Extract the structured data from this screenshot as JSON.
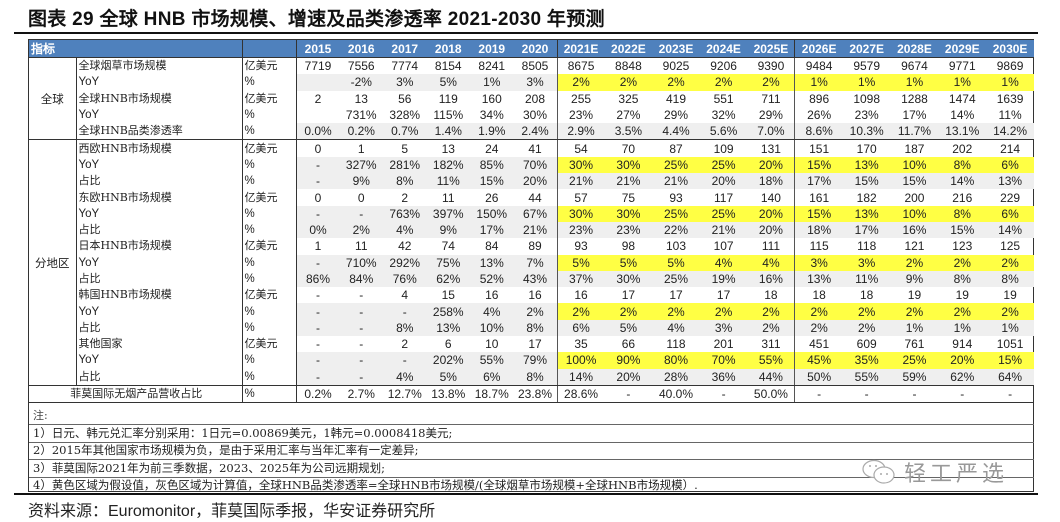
{
  "title": "图表 29 全球 HNB 市场规模、增速及品类渗透率 2021-2030 年预测",
  "table": {
    "header": {
      "indicator": "指标",
      "unit": "",
      "years": [
        "2015",
        "2016",
        "2017",
        "2018",
        "2019",
        "2020",
        "2021E",
        "2022E",
        "2023E",
        "2024E",
        "2025E",
        "2026E",
        "2027E",
        "2028E",
        "2029E",
        "2030E"
      ]
    },
    "groups": [
      {
        "name": "全球",
        "rows": [
          {
            "label": "全球烟草市场规模",
            "unit": "亿美元",
            "style": "white",
            "values": [
              "7719",
              "7556",
              "7774",
              "8154",
              "8241",
              "8505",
              "8675",
              "8848",
              "9025",
              "9206",
              "9390",
              "9484",
              "9579",
              "9674",
              "9771",
              "9869"
            ]
          },
          {
            "label": "YoY",
            "unit": "%",
            "style": "yellow",
            "values": [
              "",
              "-2%",
              "3%",
              "5%",
              "1%",
              "3%",
              "2%",
              "2%",
              "2%",
              "2%",
              "2%",
              "1%",
              "1%",
              "1%",
              "1%",
              "1%"
            ]
          },
          {
            "label": "全球HNB市场规模",
            "unit": "亿美元",
            "style": "white",
            "values": [
              "2",
              "13",
              "56",
              "119",
              "160",
              "208",
              "255",
              "325",
              "419",
              "551",
              "711",
              "896",
              "1098",
              "1288",
              "1474",
              "1639"
            ]
          },
          {
            "label": "YoY",
            "unit": "%",
            "style": "white",
            "values": [
              "",
              "731%",
              "328%",
              "115%",
              "34%",
              "30%",
              "23%",
              "27%",
              "29%",
              "32%",
              "29%",
              "26%",
              "23%",
              "17%",
              "14%",
              "11%"
            ]
          },
          {
            "label": "全球HNB品类渗透率",
            "unit": "%",
            "style": "gray",
            "values": [
              "0.0%",
              "0.2%",
              "0.7%",
              "1.4%",
              "1.9%",
              "2.4%",
              "2.9%",
              "3.5%",
              "4.4%",
              "5.6%",
              "7.0%",
              "8.6%",
              "10.3%",
              "11.7%",
              "13.1%",
              "14.2%"
            ]
          }
        ]
      },
      {
        "name": "分地区",
        "rows": [
          {
            "label": "西欧HNB市场规模",
            "unit": "亿美元",
            "style": "white",
            "values": [
              "0",
              "1",
              "5",
              "13",
              "24",
              "41",
              "54",
              "70",
              "87",
              "109",
              "131",
              "151",
              "170",
              "187",
              "202",
              "214"
            ]
          },
          {
            "label": "YoY",
            "unit": "%",
            "style": "yellow",
            "values": [
              "-",
              "327%",
              "281%",
              "182%",
              "85%",
              "70%",
              "30%",
              "30%",
              "25%",
              "25%",
              "20%",
              "15%",
              "13%",
              "10%",
              "8%",
              "6%"
            ]
          },
          {
            "label": "占比",
            "unit": "%",
            "style": "gray",
            "values": [
              "-",
              "9%",
              "8%",
              "11%",
              "15%",
              "20%",
              "21%",
              "21%",
              "21%",
              "20%",
              "18%",
              "17%",
              "15%",
              "15%",
              "14%",
              "13%"
            ]
          },
          {
            "label": "东欧HNB市场规模",
            "unit": "亿美元",
            "style": "white",
            "values": [
              "0",
              "0",
              "2",
              "11",
              "26",
              "44",
              "57",
              "75",
              "93",
              "117",
              "140",
              "161",
              "182",
              "200",
              "216",
              "229"
            ]
          },
          {
            "label": "YoY",
            "unit": "%",
            "style": "yellow",
            "values": [
              "-",
              "-",
              "763%",
              "397%",
              "150%",
              "67%",
              "30%",
              "30%",
              "25%",
              "25%",
              "20%",
              "15%",
              "13%",
              "10%",
              "8%",
              "6%"
            ]
          },
          {
            "label": "占比",
            "unit": "%",
            "style": "gray",
            "values": [
              "0%",
              "2%",
              "4%",
              "9%",
              "17%",
              "21%",
              "23%",
              "23%",
              "22%",
              "21%",
              "20%",
              "18%",
              "17%",
              "16%",
              "15%",
              "14%"
            ]
          },
          {
            "label": "日本HNB市场规模",
            "unit": "亿美元",
            "style": "white",
            "values": [
              "1",
              "11",
              "42",
              "74",
              "84",
              "89",
              "93",
              "98",
              "103",
              "107",
              "111",
              "115",
              "118",
              "121",
              "123",
              "125"
            ]
          },
          {
            "label": "YoY",
            "unit": "%",
            "style": "yellow",
            "values": [
              "-",
              "710%",
              "292%",
              "75%",
              "13%",
              "7%",
              "5%",
              "5%",
              "5%",
              "4%",
              "4%",
              "3%",
              "3%",
              "2%",
              "2%",
              "2%"
            ]
          },
          {
            "label": "占比",
            "unit": "%",
            "style": "gray",
            "values": [
              "86%",
              "84%",
              "76%",
              "62%",
              "52%",
              "43%",
              "37%",
              "30%",
              "25%",
              "19%",
              "16%",
              "13%",
              "11%",
              "9%",
              "8%",
              "8%"
            ]
          },
          {
            "label": "韩国HNB市场规模",
            "unit": "亿美元",
            "style": "white",
            "values": [
              "-",
              "-",
              "4",
              "15",
              "16",
              "16",
              "16",
              "17",
              "17",
              "17",
              "18",
              "18",
              "18",
              "19",
              "19",
              "19"
            ]
          },
          {
            "label": "YoY",
            "unit": "%",
            "style": "yellow",
            "values": [
              "-",
              "-",
              "-",
              "258%",
              "4%",
              "2%",
              "2%",
              "2%",
              "2%",
              "2%",
              "2%",
              "2%",
              "2%",
              "2%",
              "2%",
              "2%"
            ]
          },
          {
            "label": "占比",
            "unit": "%",
            "style": "gray",
            "values": [
              "-",
              "-",
              "8%",
              "13%",
              "10%",
              "8%",
              "6%",
              "5%",
              "4%",
              "3%",
              "2%",
              "2%",
              "2%",
              "1%",
              "1%",
              "1%"
            ]
          },
          {
            "label": "其他国家",
            "unit": "亿美元",
            "style": "white",
            "values": [
              "-",
              "-",
              "2",
              "6",
              "10",
              "17",
              "35",
              "66",
              "118",
              "201",
              "311",
              "451",
              "609",
              "761",
              "914",
              "1051"
            ]
          },
          {
            "label": "YoY",
            "unit": "%",
            "style": "yellow",
            "values": [
              "-",
              "-",
              "-",
              "202%",
              "55%",
              "79%",
              "100%",
              "90%",
              "80%",
              "70%",
              "55%",
              "45%",
              "35%",
              "25%",
              "20%",
              "15%"
            ]
          },
          {
            "label": "占比",
            "unit": "%",
            "style": "gray",
            "values": [
              "-",
              "-",
              "4%",
              "5%",
              "6%",
              "8%",
              "14%",
              "20%",
              "28%",
              "36%",
              "44%",
              "50%",
              "55%",
              "59%",
              "62%",
              "64%"
            ]
          }
        ]
      }
    ],
    "footer_row": {
      "label": "菲莫国际无烟产品营收占比",
      "unit": "%",
      "values": [
        "0.2%",
        "2.7%",
        "12.7%",
        "13.8%",
        "18.7%",
        "23.8%",
        "28.6%",
        "-",
        "40.0%",
        "-",
        "50.0%",
        "-",
        "-",
        "-",
        "-",
        "-"
      ]
    }
  },
  "notes": {
    "heading": "注:",
    "items": [
      "1）日元、韩元兑汇率分别采用：1日元=0.00869美元，1韩元=0.0008418美元;",
      "2）2015年其他国家市场规模为负，是由于采用汇率与当年汇率有一定差异;",
      "3）菲莫国际2021年为前三季数据，2023、2025年为公司远期规划;",
      "4）黄色区域为假设值，灰色区域为计算值，全球HNB品类渗透率=全球HNB市场规模/(全球烟草市场规模+全球HNB市场规模）."
    ]
  },
  "watermark": {
    "icon": "wechat-icon",
    "text": "轻工严选"
  },
  "source": "资料来源：Euromonitor，菲莫国际季报，华安证券研究所",
  "colors": {
    "header_bg": "#4f81bd",
    "yellow": "#ffff44",
    "gray": "#efefef"
  }
}
